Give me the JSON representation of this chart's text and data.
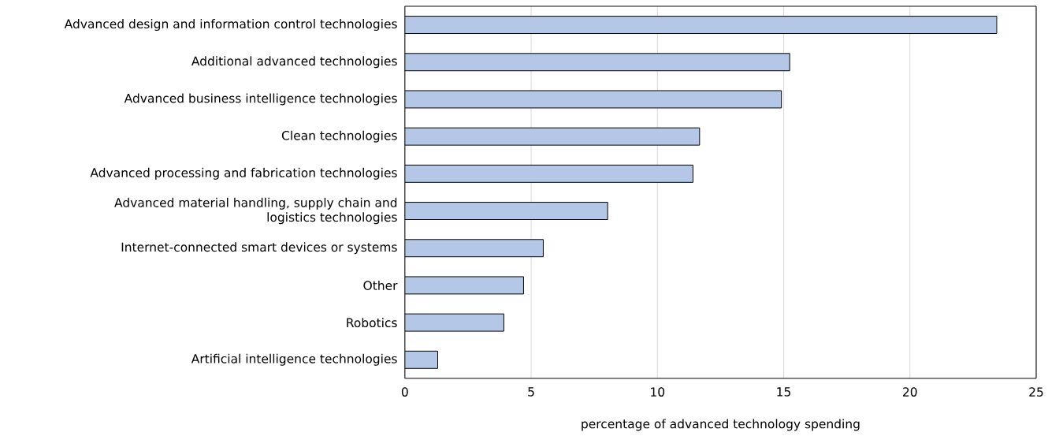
{
  "chart_data": {
    "type": "bar",
    "orientation": "horizontal",
    "xlabel": "percentage of advanced technology spending",
    "categories": [
      "Advanced design and information control  technologies",
      "Additional advanced technologies",
      "Advanced business intelligence technologies",
      "Clean technologies",
      "Advanced processing and fabrication technologies",
      "Advanced material handling, supply chain and logistics technologies",
      "Internet-connected smart devices or systems",
      "Other",
      "Robotics",
      "Artificial intelligence technologies"
    ],
    "values": [
      23.44,
      15.24,
      14.91,
      11.67,
      11.41,
      8.03,
      5.48,
      4.7,
      3.92,
      1.3
    ],
    "color": "#b4c7e7",
    "xlim": [
      0,
      25
    ],
    "xticks": [
      0,
      5,
      10,
      15,
      20,
      25
    ],
    "grid": "x"
  }
}
